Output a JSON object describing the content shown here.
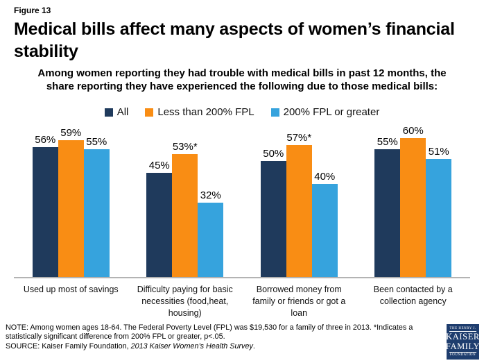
{
  "header": {
    "figure_label": "Figure 13",
    "title": "Medical bills affect many aspects of women’s financial stability",
    "subtitle": "Among women reporting they had trouble with medical bills in past 12 months, the share reporting they have experienced the following due to those medical bills:"
  },
  "chart_data": {
    "type": "bar",
    "title": "Medical bills affect many aspects of women’s financial stability",
    "categories": [
      "Used up most of savings",
      "Difficulty paying for basic necessities (food,heat, housing)",
      "Borrowed money from family or friends or got a loan",
      "Been contacted by a collection agency"
    ],
    "series": [
      {
        "name": "All",
        "color": "#1f3a5c",
        "values": [
          56,
          45,
          50,
          55
        ],
        "labels": [
          "56%",
          "45%",
          "50%",
          "55%"
        ]
      },
      {
        "name": "Less than 200% FPL",
        "color": "#f98d14",
        "values": [
          59,
          53,
          57,
          60
        ],
        "labels": [
          "59%",
          "53%*",
          "57%*",
          "60%"
        ]
      },
      {
        "name": "200% FPL or greater",
        "color": "#36a3dd",
        "values": [
          55,
          32,
          40,
          51
        ],
        "labels": [
          "55%",
          "32%",
          "40%",
          "51%"
        ]
      }
    ],
    "xlabel": "",
    "ylabel": "",
    "ylim": [
      0,
      66
    ],
    "grid": false,
    "legend_position": "top",
    "axis_line_color": "#b3b3b3",
    "value_suffix": "%"
  },
  "notes": {
    "note_text": "NOTE: Among women ages 18-64. The Federal Poverty Level (FPL) was $19,530 for a family of three in 2013. *Indicates a statistically significant difference from 200% FPL or greater, p<.05.",
    "source_prefix": "SOURCE: Kaiser Family Foundation, ",
    "source_italic": "2013 Kaiser Women’s Health Survey",
    "source_suffix": "."
  },
  "logo": {
    "line1": "THE HENRY J.",
    "line2": "KAISER",
    "line3": "FAMILY",
    "line4": "FOUNDATION",
    "bg_color": "#1e3d6e"
  }
}
